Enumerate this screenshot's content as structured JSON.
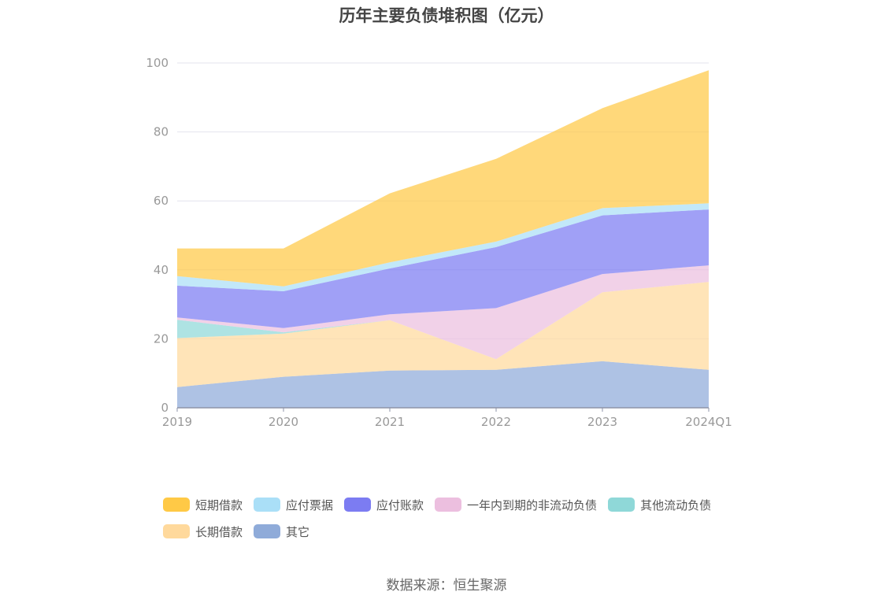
{
  "title": "历年主要负债堆积图（亿元）",
  "source": "数据来源：恒生聚源",
  "chart_data": {
    "type": "area",
    "stacked": true,
    "categories": [
      "2019",
      "2020",
      "2021",
      "2022",
      "2023",
      "2024Q1"
    ],
    "ylim": [
      0,
      100
    ],
    "yticks": [
      0,
      20,
      40,
      60,
      80,
      100
    ],
    "grid": true,
    "legend_position": "bottom",
    "series": [
      {
        "name": "其它",
        "color": "#8fabd9",
        "values": [
          6.0,
          9.0,
          10.8,
          11.0,
          13.5,
          11.0
        ]
      },
      {
        "name": "长期借款",
        "color": "#ffd99c",
        "values": [
          14.2,
          12.5,
          14.6,
          3.1,
          20.0,
          25.5
        ]
      },
      {
        "name": "其他流动负债",
        "color": "#8fd8d8",
        "values": [
          5.3,
          0.4,
          0.0,
          0.0,
          0.0,
          0.0
        ]
      },
      {
        "name": "一年内到期的非流动负债",
        "color": "#ecbfdf",
        "values": [
          0.7,
          1.2,
          1.7,
          14.8,
          5.3,
          4.8
        ]
      },
      {
        "name": "应付账款",
        "color": "#7c7cf2",
        "values": [
          9.2,
          10.7,
          13.3,
          17.7,
          17.0,
          16.2
        ]
      },
      {
        "name": "应付票据",
        "color": "#aadff7",
        "values": [
          2.8,
          1.4,
          1.8,
          1.6,
          2.1,
          1.8
        ]
      },
      {
        "name": "短期借款",
        "color": "#ffc946",
        "values": [
          8.0,
          11.0,
          20.0,
          24.0,
          29.0,
          38.6
        ]
      }
    ],
    "legend_order": [
      "短期借款",
      "应付票据",
      "应付账款",
      "一年内到期的非流动负债",
      "其他流动负债",
      "长期借款",
      "其它"
    ]
  }
}
